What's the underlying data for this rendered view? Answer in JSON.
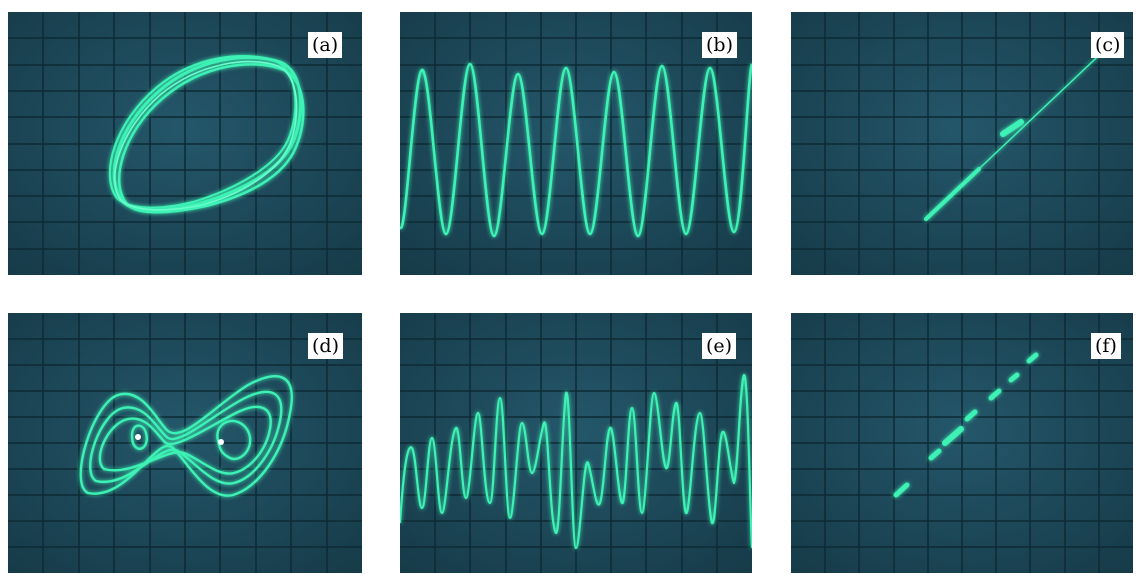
{
  "figure": {
    "background": "#ffffff",
    "screen_color": "#1e4a58",
    "trace_color": "#3df2b4",
    "panels": [
      {
        "id": "a",
        "label": "(a)",
        "content": "phase-portrait"
      },
      {
        "id": "b",
        "label": "(b)",
        "content": "time-series"
      },
      {
        "id": "c",
        "label": "(c)",
        "content": "diagonal-line"
      },
      {
        "id": "d",
        "label": "(d)",
        "content": "phase-portrait"
      },
      {
        "id": "e",
        "label": "(e)",
        "content": "time-series"
      },
      {
        "id": "f",
        "label": "(f)",
        "content": "diagonal-line"
      }
    ]
  }
}
